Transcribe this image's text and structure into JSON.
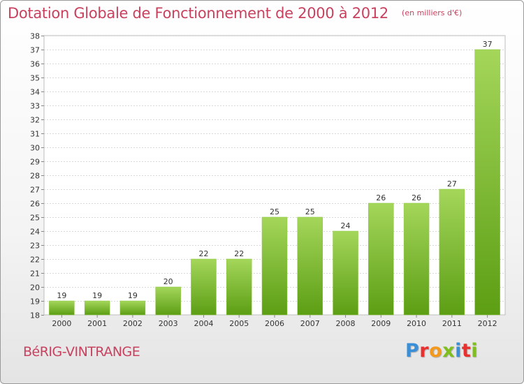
{
  "header": {
    "title": "Dotation Globale de Fonctionnement de 2000 à 2012",
    "unit": "(en milliers d'€)"
  },
  "footer": {
    "commune": "BéRIG-VINTRANGE",
    "logo_text": "Proxiti",
    "logo_colors": [
      "#3a8fd9",
      "#e8312f",
      "#f39a1e",
      "#7fbf1d",
      "#3a8fd9",
      "#e8312f",
      "#7fbf1d"
    ]
  },
  "colors": {
    "bar_light": "#a4d65a",
    "bar_dark": "#5c9e14",
    "title": "#c8415f",
    "grid": "#d8d8d8"
  },
  "chart_data": {
    "type": "bar",
    "title": "Dotation Globale de Fonctionnement de 2000 à 2012",
    "subtitle": "(en milliers d'€)",
    "xlabel": "",
    "ylabel": "",
    "categories": [
      "2000",
      "2001",
      "2002",
      "2003",
      "2004",
      "2005",
      "2006",
      "2007",
      "2008",
      "2009",
      "2010",
      "2011",
      "2012"
    ],
    "values": [
      19,
      19,
      19,
      20,
      22,
      22,
      25,
      25,
      24,
      26,
      26,
      27,
      37
    ],
    "ylim": [
      18,
      38
    ],
    "yticks": [
      18,
      19,
      20,
      21,
      22,
      23,
      24,
      25,
      26,
      27,
      28,
      29,
      30,
      31,
      32,
      33,
      34,
      35,
      36,
      37,
      38
    ],
    "grid": true,
    "legend": "none"
  }
}
